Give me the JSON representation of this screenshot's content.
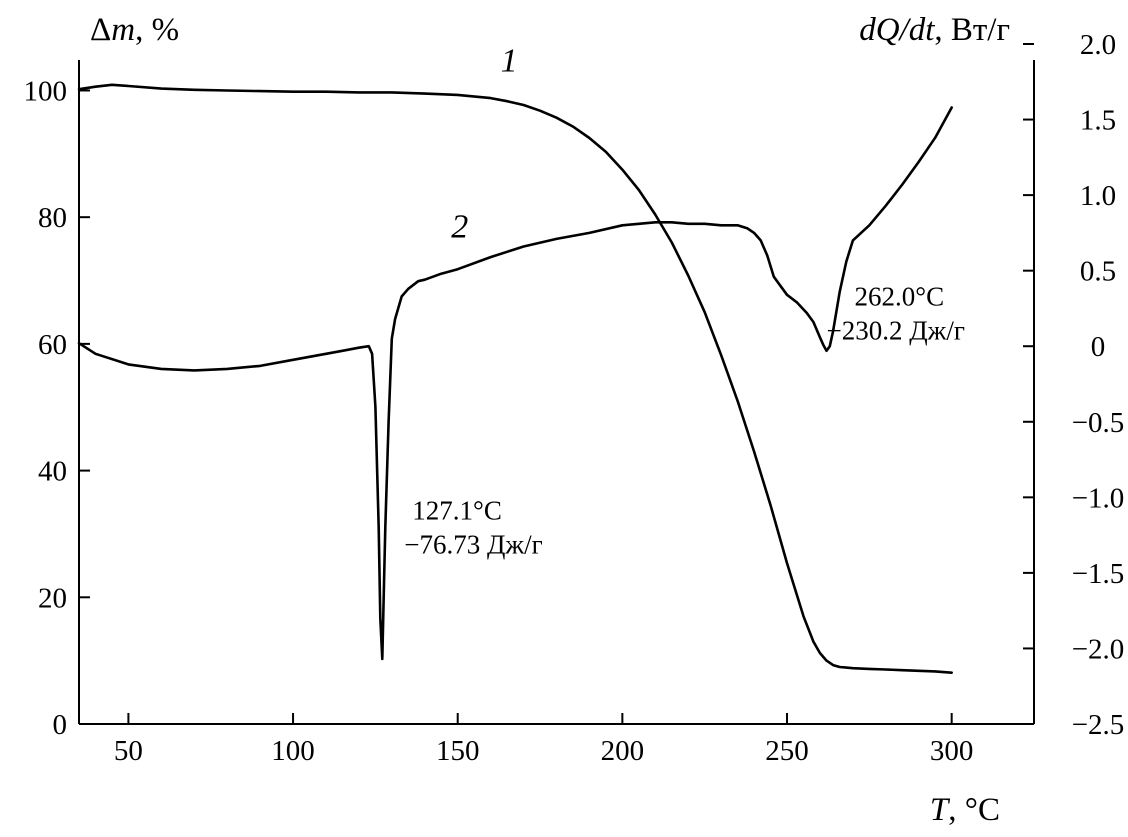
{
  "chart_data": {
    "type": "line",
    "xlabel": {
      "symbol": "T",
      "unit": ", °C"
    },
    "ylabel_left": {
      "symbol": "m",
      "prefix": "Δ",
      "unit": ", %"
    },
    "ylabel_right": {
      "symbol": "dQ/dt",
      "unit": ", Вт/г"
    },
    "xlim": [
      35,
      325
    ],
    "ylim_left": [
      0,
      105
    ],
    "ylim_right": [
      -2.5,
      2.0
    ],
    "x_ticks": [
      50,
      100,
      150,
      200,
      250,
      300
    ],
    "x_tick_labels": [
      "50",
      "100",
      "150",
      "200",
      "250",
      "300"
    ],
    "y_left_ticks": [
      0,
      20,
      40,
      60,
      80,
      100
    ],
    "y_left_tick_labels": [
      "0",
      "20",
      "40",
      "60",
      "80",
      "100"
    ],
    "y_right_ticks": [
      2.0,
      1.5,
      1.0,
      0.5,
      0,
      -0.5,
      -1.0,
      -1.5,
      -2.0,
      -2.5
    ],
    "y_right_tick_labels": [
      "2.0",
      "1.5",
      "1.0",
      "0.5",
      "0",
      "−0.5",
      "−1.0",
      "−1.5",
      "−2.0",
      "−2.5"
    ],
    "grid": false,
    "series": [
      {
        "name": "1",
        "axis": "left",
        "x": [
          35,
          40,
          45,
          50,
          60,
          70,
          80,
          90,
          100,
          110,
          120,
          130,
          140,
          150,
          160,
          165,
          170,
          175,
          180,
          185,
          190,
          195,
          200,
          205,
          210,
          215,
          220,
          225,
          230,
          235,
          240,
          245,
          250,
          255,
          258,
          260,
          262,
          264,
          266,
          268,
          270,
          275,
          280,
          285,
          290,
          295,
          300
        ],
        "values": [
          100.2,
          100.6,
          100.9,
          100.7,
          100.3,
          100.1,
          100.0,
          99.9,
          99.8,
          99.8,
          99.7,
          99.7,
          99.5,
          99.3,
          98.8,
          98.3,
          97.7,
          96.8,
          95.7,
          94.3,
          92.5,
          90.3,
          87.5,
          84.3,
          80.4,
          76.0,
          70.8,
          65.0,
          58.2,
          51.0,
          43.0,
          34.5,
          25.4,
          17.0,
          13.0,
          11.2,
          10.0,
          9.3,
          9.0,
          8.9,
          8.8,
          8.7,
          8.6,
          8.5,
          8.4,
          8.3,
          8.1
        ]
      },
      {
        "name": "2",
        "axis": "right",
        "x": [
          35,
          40,
          50,
          60,
          70,
          80,
          90,
          100,
          110,
          115,
          120,
          123,
          124,
          125,
          126,
          126.5,
          127.1,
          127.6,
          128,
          129,
          130,
          131,
          133,
          135,
          138,
          140,
          145,
          150,
          160,
          170,
          180,
          190,
          200,
          205,
          210,
          215,
          220,
          225,
          230,
          235,
          238,
          240,
          242,
          244,
          246,
          248,
          250,
          253,
          256,
          258,
          260,
          261,
          262,
          263,
          264,
          266,
          268,
          270,
          275,
          280,
          285,
          290,
          295,
          298,
          300
        ],
        "values": [
          0.02,
          -0.05,
          -0.12,
          -0.15,
          -0.16,
          -0.15,
          -0.13,
          -0.09,
          -0.05,
          -0.03,
          -0.01,
          0.0,
          -0.05,
          -0.4,
          -1.2,
          -1.8,
          -2.07,
          -1.6,
          -1.2,
          -0.5,
          0.05,
          0.18,
          0.33,
          0.38,
          0.43,
          0.44,
          0.48,
          0.51,
          0.59,
          0.66,
          0.71,
          0.75,
          0.8,
          0.81,
          0.82,
          0.82,
          0.81,
          0.81,
          0.8,
          0.8,
          0.78,
          0.75,
          0.7,
          0.6,
          0.46,
          0.4,
          0.34,
          0.29,
          0.22,
          0.16,
          0.06,
          0.01,
          -0.03,
          0.0,
          0.1,
          0.36,
          0.56,
          0.7,
          0.8,
          0.93,
          1.07,
          1.22,
          1.38,
          1.5,
          1.58
        ]
      }
    ],
    "curve_labels": [
      {
        "text": "1",
        "x": 165,
        "y_left": 103,
        "axis": "left"
      },
      {
        "text": "2",
        "x": 150,
        "y_right": 0.72,
        "axis": "right"
      }
    ],
    "annotations": [
      {
        "lines": [
          "127.1°C",
          "−76.73 Дж/г"
        ],
        "x": 127.1,
        "y_right": -1.2,
        "axis": "right"
      },
      {
        "lines": [
          "262.0°C",
          "−230.2 Дж/г"
        ],
        "x": 262.0,
        "y_right": 0.15,
        "axis": "right"
      }
    ]
  }
}
